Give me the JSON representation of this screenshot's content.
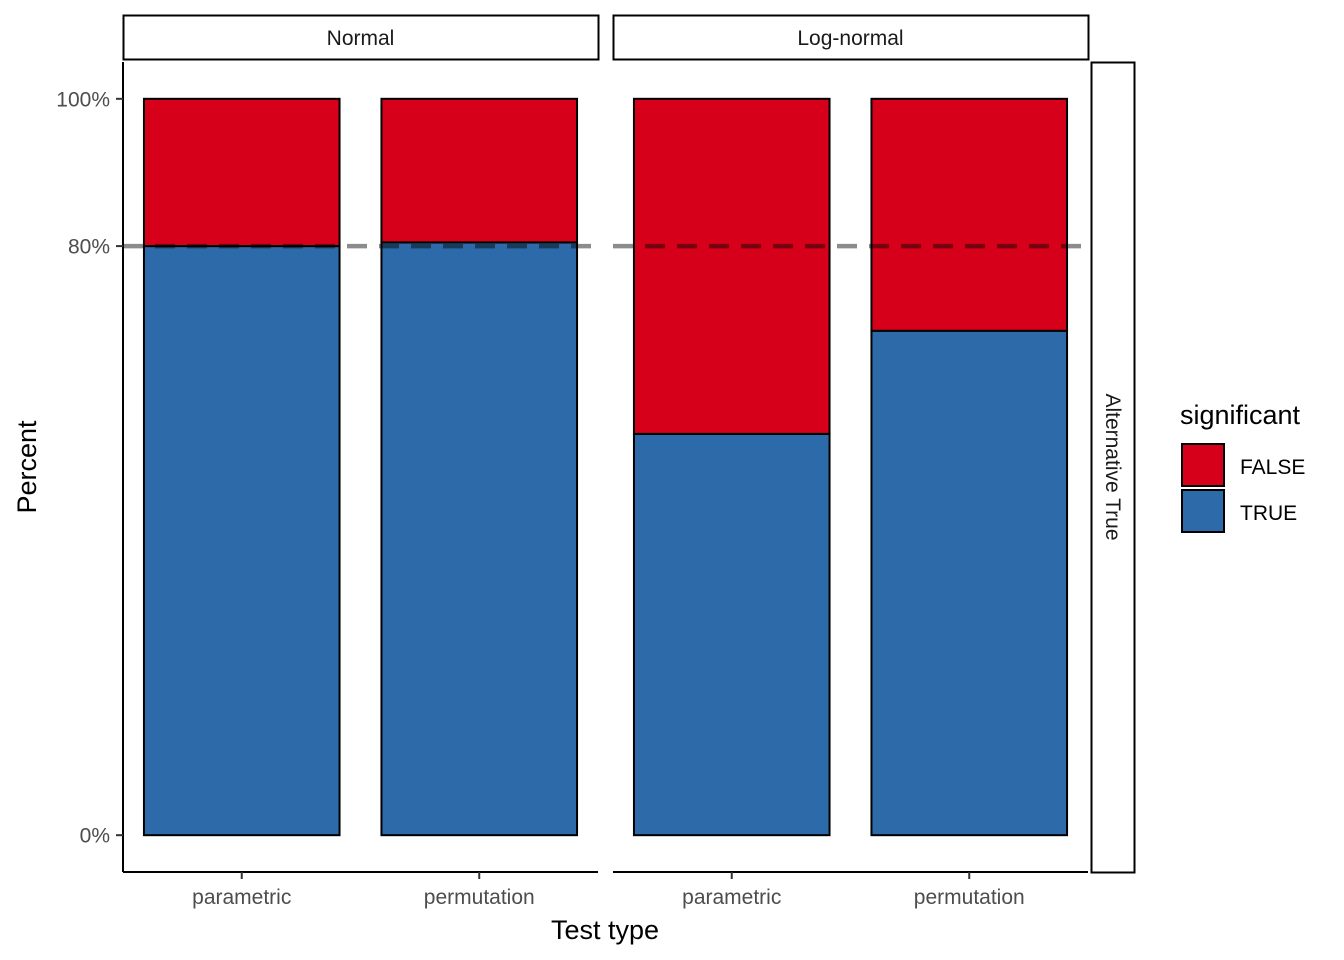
{
  "chart_data": {
    "type": "bar",
    "stacked": true,
    "xlabel": "Test type",
    "ylabel": "Percent",
    "categories": [
      "parametric",
      "permutation"
    ],
    "facets": [
      "Normal",
      "Log-normal"
    ],
    "row_facet": "Alternative True",
    "y_ticks": [
      "0%",
      "80%",
      "100%"
    ],
    "y_tick_values": [
      0,
      80,
      100
    ],
    "ylim": [
      -5,
      105
    ],
    "reference_line": {
      "y": 80,
      "style": "dashed"
    },
    "legend": {
      "title": "significant",
      "entries": [
        "FALSE",
        "TRUE"
      ],
      "position": "right"
    },
    "series": [
      {
        "name": "TRUE",
        "color": "#2C6AA9",
        "values": {
          "Normal": [
            80.0,
            80.5
          ],
          "Log-normal": [
            54.5,
            68.5
          ]
        }
      },
      {
        "name": "FALSE",
        "color": "#D7001B",
        "values": {
          "Normal": [
            20.0,
            19.5
          ],
          "Log-normal": [
            45.5,
            31.5
          ]
        }
      }
    ]
  }
}
